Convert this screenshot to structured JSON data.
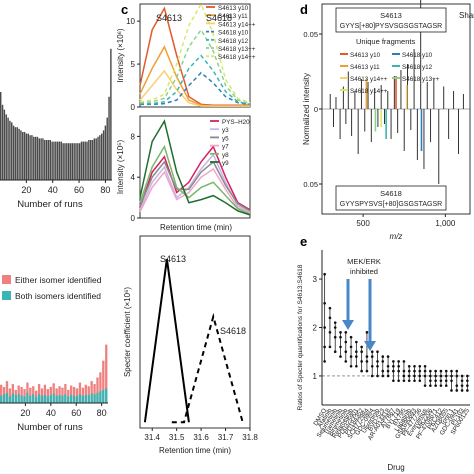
{
  "panel_letters": {
    "c": "c",
    "d": "d",
    "e": "e"
  },
  "chart_data": [
    {
      "id": "a-hist",
      "type": "bar",
      "xlabel": "Number of runs",
      "x_ticks": [
        "20",
        "40",
        "60",
        "80"
      ],
      "xlim": [
        0,
        85
      ],
      "ylim": [
        0,
        1
      ],
      "values": [
        0.55,
        0.47,
        0.44,
        0.41,
        0.39,
        0.37,
        0.36,
        0.34,
        0.33,
        0.33,
        0.32,
        0.31,
        0.3,
        0.3,
        0.29,
        0.29,
        0.28,
        0.28,
        0.27,
        0.27,
        0.27,
        0.26,
        0.26,
        0.26,
        0.25,
        0.25,
        0.25,
        0.25,
        0.24,
        0.24,
        0.24,
        0.24,
        0.24,
        0.24,
        0.23,
        0.23,
        0.23,
        0.23,
        0.23,
        0.23,
        0.23,
        0.23,
        0.23,
        0.23,
        0.24,
        0.24,
        0.24,
        0.24,
        0.25,
        0.25,
        0.25,
        0.26,
        0.26,
        0.27,
        0.28,
        0.29,
        0.31,
        0.34,
        0.39,
        0.52,
        0.82
      ]
    },
    {
      "id": "b-hist",
      "type": "bar",
      "xlabel": "Number of runs",
      "x_ticks": [
        "20",
        "40",
        "60",
        "80"
      ],
      "xlim": [
        0,
        85
      ],
      "legend": [
        {
          "label": "Either isomer identified",
          "color": "#f08080"
        },
        {
          "label": "Both isomers identified",
          "color": "#3bb5b3"
        }
      ],
      "series": [
        {
          "color": "#f08080",
          "values": [
            0.25,
            0.22,
            0.3,
            0.2,
            0.26,
            0.18,
            0.24,
            0.22,
            0.19,
            0.28,
            0.21,
            0.23,
            0.17,
            0.26,
            0.2,
            0.25,
            0.19,
            0.22,
            0.27,
            0.2,
            0.23,
            0.21,
            0.26,
            0.18,
            0.24,
            0.22,
            0.2,
            0.28,
            0.21,
            0.25,
            0.23,
            0.3,
            0.26,
            0.35,
            0.42,
            0.58,
            0.8
          ]
        },
        {
          "color": "#3bb5b3",
          "values": [
            0.1,
            0.12,
            0.14,
            0.09,
            0.13,
            0.11,
            0.12,
            0.1,
            0.09,
            0.14,
            0.1,
            0.12,
            0.08,
            0.12,
            0.1,
            0.11,
            0.09,
            0.11,
            0.13,
            0.1,
            0.11,
            0.1,
            0.12,
            0.09,
            0.11,
            0.1,
            0.09,
            0.12,
            0.1,
            0.11,
            0.11,
            0.13,
            0.12,
            0.14,
            0.16,
            0.18,
            0.2
          ]
        }
      ]
    },
    {
      "id": "c-top",
      "type": "line",
      "ylabel": "Intensity (×10⁶)",
      "y_ticks": [
        "0",
        "5",
        "10"
      ],
      "ylim": [
        0,
        12
      ],
      "x": [
        31.35,
        31.4,
        31.45,
        31.5,
        31.55,
        31.6,
        31.65,
        31.7,
        31.75,
        31.8
      ],
      "annotations": [
        "S4613",
        "S4618"
      ],
      "legend": [
        "S4613 y10",
        "S4613 y11",
        "S4613 y14++",
        "S4618 y10",
        "S4618 y12",
        "S4618 y13++",
        "S4618 y14++"
      ],
      "series": [
        {
          "name": "S4613 y10",
          "color": "#e05a2b",
          "dash": false,
          "values": [
            2.5,
            9.0,
            11.5,
            6.0,
            1.2,
            0.3,
            0.2,
            0.2,
            0.2,
            0.2
          ]
        },
        {
          "name": "S4613 y11",
          "color": "#f0a030",
          "dash": false,
          "values": [
            1.5,
            4.5,
            7.0,
            3.5,
            0.8,
            0.2,
            0.1,
            0.1,
            0.1,
            0.1
          ]
        },
        {
          "name": "S4613 y14++",
          "color": "#f7d070",
          "dash": false,
          "values": [
            0.8,
            2.5,
            4.2,
            2.0,
            0.5,
            0.1,
            0.1,
            0.1,
            0.1,
            0.1
          ]
        },
        {
          "name": "S4618 y10",
          "color": "#2f7fb5",
          "dash": true,
          "values": [
            0.3,
            0.3,
            0.4,
            0.8,
            2.5,
            4.0,
            2.8,
            1.2,
            0.5,
            0.3
          ]
        },
        {
          "name": "S4618 y12",
          "color": "#3bb5b3",
          "dash": true,
          "values": [
            0.4,
            0.4,
            0.6,
            1.8,
            4.5,
            6.0,
            4.2,
            1.8,
            0.6,
            0.3
          ]
        },
        {
          "name": "S4618 y13++",
          "color": "#8cd08c",
          "dash": true,
          "values": [
            0.5,
            0.6,
            1.0,
            3.5,
            7.0,
            9.0,
            6.5,
            2.5,
            0.8,
            0.4
          ]
        },
        {
          "name": "S4618 y14++",
          "color": "#d7e86a",
          "dash": true,
          "values": [
            0.6,
            0.8,
            1.5,
            5.0,
            9.5,
            12.0,
            8.5,
            3.2,
            1.0,
            0.5
          ]
        }
      ]
    },
    {
      "id": "c-mid",
      "type": "line",
      "ylabel": "Intensity (×10⁵)",
      "y_ticks": [
        "0",
        "4",
        "8"
      ],
      "ylim": [
        0,
        10
      ],
      "x": [
        31.35,
        31.4,
        31.45,
        31.5,
        31.55,
        31.6,
        31.65,
        31.7,
        31.75,
        31.8
      ],
      "xlabel": "Retention time (min)",
      "legend": [
        "PYS–H20",
        "y3",
        "y5",
        "y7",
        "y8",
        "y9"
      ],
      "series": [
        {
          "name": "PYS–H20",
          "color": "#d62060",
          "values": [
            1.0,
            4.5,
            6.0,
            2.5,
            3.5,
            5.5,
            7.0,
            4.0,
            1.5,
            0.8
          ]
        },
        {
          "name": "y3",
          "color": "#c6b6e6",
          "values": [
            0.8,
            3.5,
            5.0,
            2.0,
            3.0,
            4.8,
            6.2,
            3.5,
            1.2,
            0.6
          ]
        },
        {
          "name": "y5",
          "color": "#8a8a8a",
          "values": [
            1.2,
            4.0,
            5.5,
            2.8,
            2.8,
            4.5,
            5.5,
            3.2,
            1.4,
            0.7
          ]
        },
        {
          "name": "y7",
          "color": "#f0a6c8",
          "values": [
            0.6,
            3.0,
            4.5,
            1.8,
            2.5,
            4.0,
            4.8,
            2.8,
            1.0,
            0.5
          ]
        },
        {
          "name": "y8",
          "color": "#7ab86a",
          "values": [
            1.5,
            5.0,
            7.0,
            3.0,
            2.0,
            3.0,
            3.5,
            2.2,
            0.9,
            0.4
          ]
        },
        {
          "name": "y9",
          "color": "#1f6e2f",
          "values": [
            2.0,
            7.5,
            9.5,
            4.5,
            1.5,
            1.8,
            2.2,
            1.5,
            0.7,
            0.3
          ]
        }
      ]
    },
    {
      "id": "c-bottom",
      "type": "line",
      "ylabel": "Specter coefficient (×10⁶)",
      "xlabel": "Retention time (min)",
      "x_ticks": [
        "31.4",
        "31.5",
        "31.6",
        "31.7",
        "31.8"
      ],
      "xlim": [
        31.35,
        31.8
      ],
      "ylim": [
        0,
        1
      ],
      "annotations": [
        "S4613",
        "S4618"
      ],
      "series": [
        {
          "name": "S4613",
          "color": "#000000",
          "dash": false,
          "points": [
            [
              31.37,
              0.03
            ],
            [
              31.46,
              0.88
            ],
            [
              31.55,
              0.03
            ]
          ]
        },
        {
          "name": "S4618",
          "color": "#000000",
          "dash": true,
          "points": [
            [
              31.48,
              0.03
            ],
            [
              31.53,
              0.03
            ],
            [
              31.65,
              0.58
            ],
            [
              31.77,
              0.03
            ]
          ]
        }
      ]
    },
    {
      "id": "d-spectrum",
      "type": "bar",
      "ylabel": "Normalized intensity",
      "xlabel": "m/z",
      "x_ticks": [
        "500",
        "1,000"
      ],
      "xlim": [
        250,
        1150
      ],
      "y_ticks": [
        "0.05",
        "0",
        "0.05"
      ],
      "ylim": [
        -0.07,
        0.07
      ],
      "top_label": "S4613",
      "top_sequence": "GYYS[+80]PYSVSGSGSTAGSR",
      "bottom_label": "S4618",
      "bottom_sequence": "GYYSPYSVS[+80]GSGSTAGSR",
      "legend_title": "Unique fragments",
      "legend": [
        {
          "label": "S4613 y10",
          "color": "#e05a2b"
        },
        {
          "label": "S4618 y10",
          "color": "#2f7fb5"
        },
        {
          "label": "S4613 y11",
          "color": "#f0a030"
        },
        {
          "label": "S4618 y12",
          "color": "#3bb5b3"
        },
        {
          "label": "S4613 y14++",
          "color": "#f7d070"
        },
        {
          "label": "S4618 y13++",
          "color": "#8cd08c"
        },
        {
          "label": "S4618 y14++",
          "color": "#d7e86a"
        }
      ],
      "corner_label": "Shar",
      "peaks": [
        [
          300,
          0.01
        ],
        [
          320,
          -0.012
        ],
        [
          335,
          0.008
        ],
        [
          360,
          -0.02
        ],
        [
          380,
          0.015
        ],
        [
          395,
          -0.01
        ],
        [
          410,
          0.025
        ],
        [
          430,
          -0.018
        ],
        [
          450,
          0.012
        ],
        [
          470,
          -0.03
        ],
        [
          490,
          0.02
        ],
        [
          510,
          -0.015
        ],
        [
          530,
          0.018
        ],
        [
          550,
          -0.022
        ],
        [
          570,
          0.014
        ],
        [
          590,
          -0.012
        ],
        [
          610,
          0.016
        ],
        [
          630,
          -0.01
        ],
        [
          650,
          0.012
        ],
        [
          670,
          -0.02
        ],
        [
          690,
          0.022
        ],
        [
          710,
          -0.016
        ],
        [
          730,
          0.026
        ],
        [
          750,
          -0.028
        ],
        [
          770,
          0.03
        ],
        [
          790,
          -0.014
        ],
        [
          810,
          0.04
        ],
        [
          830,
          -0.034
        ],
        [
          850,
          0.11
        ],
        [
          870,
          -0.04
        ],
        [
          890,
          0.018
        ],
        [
          910,
          -0.022
        ],
        [
          930,
          0.02
        ],
        [
          960,
          -0.05
        ],
        [
          990,
          0.015
        ],
        [
          1020,
          -0.02
        ],
        [
          1050,
          0.012
        ],
        [
          1080,
          -0.03
        ],
        [
          1110,
          0.01
        ]
      ],
      "colored_peaks": [
        {
          "mz": 520,
          "value": 0.02,
          "color": "#f0a030"
        },
        {
          "mz": 700,
          "value": 0.022,
          "color": "#e05a2b"
        },
        {
          "mz": 765,
          "value": 0.016,
          "color": "#f7d070"
        },
        {
          "mz": 855,
          "value": -0.028,
          "color": "#2f7fb5"
        },
        {
          "mz": 640,
          "value": -0.02,
          "color": "#3bb5b3"
        },
        {
          "mz": 575,
          "value": -0.015,
          "color": "#8cd08c"
        },
        {
          "mz": 610,
          "value": -0.012,
          "color": "#d7e86a"
        }
      ]
    },
    {
      "id": "e-drugs",
      "type": "scatter",
      "ylabel": "Ratios of Specter quantifications for S4613:S4618",
      "xlabel": "Drug",
      "y_ticks": [
        "1",
        "2",
        "3"
      ],
      "ylim": [
        0.4,
        3.6
      ],
      "annotation": "MEK/ERK inhibited",
      "categories": [
        "DMSO",
        "Afatinib",
        "Selumetinib",
        "Trametinib",
        "Binimetinib",
        "Refametinib",
        "PD0325901",
        "PD184352",
        "SCH772984",
        "GDC-0994",
        "Ulixertinib",
        "BVD-523",
        "AR-A014418",
        "AT7867",
        "BYL719",
        "BX795",
        "Lapatinib",
        "GSK690693",
        "PF-477736",
        "Everolimus",
        "MK2206",
        "PF-4708671",
        "PKC412",
        "AZD8055",
        "Torin 1",
        "GDC-0941",
        "PI-103",
        "SP600125"
      ],
      "category_values": [
        [
          1.3,
          1.6,
          2.0,
          2.5,
          3.1
        ],
        [
          1.6,
          1.9,
          2.2,
          2.4
        ],
        [
          1.5,
          1.8,
          2.0,
          2.1
        ],
        [
          1.4,
          1.6,
          1.8,
          1.9
        ],
        [
          1.3,
          1.5,
          1.7,
          1.9
        ],
        [
          1.2,
          1.4,
          1.6,
          1.8
        ],
        [
          1.2,
          1.4,
          1.5,
          1.7
        ],
        [
          1.1,
          1.3,
          1.5,
          1.6
        ],
        [
          1.1,
          1.3,
          1.4,
          1.9
        ],
        [
          1.0,
          1.2,
          1.4,
          1.5
        ],
        [
          1.0,
          1.2,
          1.3,
          1.5
        ],
        [
          1.0,
          1.1,
          1.3,
          1.4
        ],
        [
          1.0,
          1.1,
          1.2,
          1.4
        ],
        [
          0.9,
          1.1,
          1.2,
          1.3
        ],
        [
          0.9,
          1.1,
          1.2,
          1.3
        ],
        [
          0.9,
          1.0,
          1.1,
          1.3
        ],
        [
          0.9,
          1.0,
          1.1,
          1.2
        ],
        [
          0.9,
          1.0,
          1.1,
          1.2
        ],
        [
          0.9,
          1.0,
          1.1,
          1.2
        ],
        [
          0.8,
          1.0,
          1.1,
          1.2
        ],
        [
          0.8,
          0.9,
          1.0,
          1.1
        ],
        [
          0.8,
          0.9,
          1.0,
          1.1
        ],
        [
          0.8,
          0.9,
          1.0,
          1.1
        ],
        [
          0.8,
          0.9,
          1.0,
          1.1
        ],
        [
          0.7,
          0.9,
          1.0,
          1.1
        ],
        [
          0.7,
          0.8,
          1.0,
          1.1
        ],
        [
          0.7,
          0.8,
          0.9,
          1.0
        ],
        [
          0.7,
          0.8,
          0.9,
          1.0
        ]
      ]
    }
  ]
}
